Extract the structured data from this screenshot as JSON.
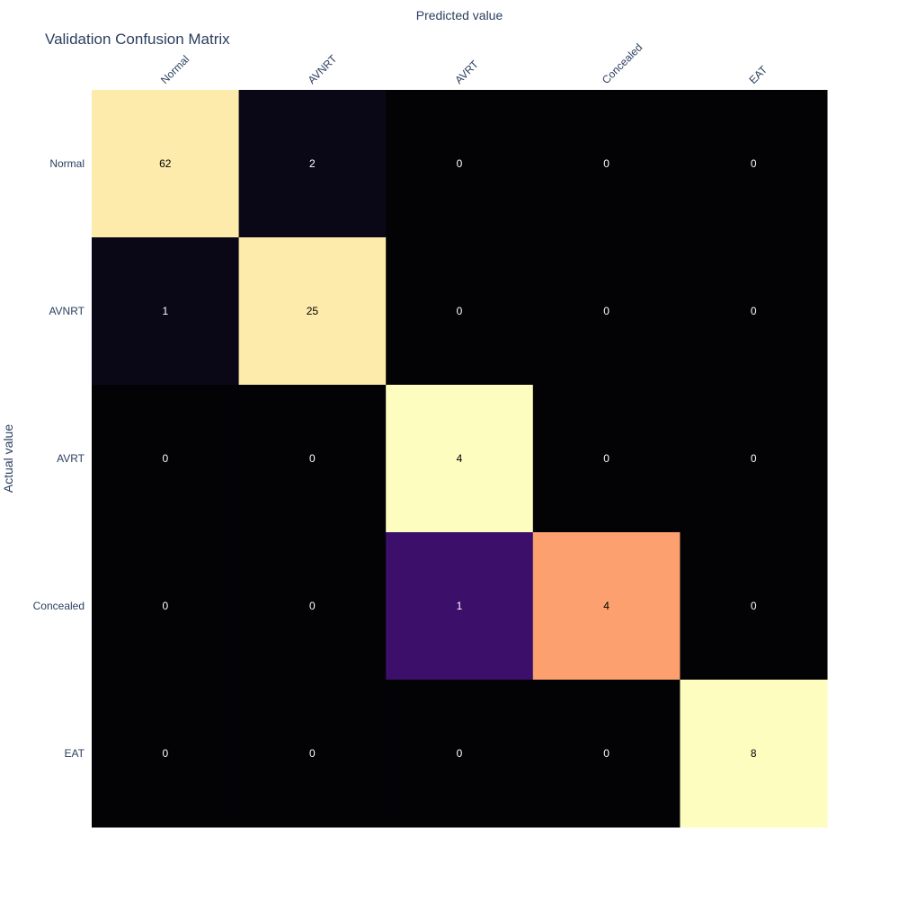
{
  "chart_data": {
    "type": "heatmap",
    "title": "Validation Confusion Matrix",
    "xlabel": "Predicted value",
    "ylabel": "Actual value",
    "x_categories": [
      "Normal",
      "AVNRT",
      "AVRT",
      "Concealed",
      "EAT"
    ],
    "y_categories": [
      "Normal",
      "AVNRT",
      "AVRT",
      "Concealed",
      "EAT"
    ],
    "x_axis_position": "top",
    "colorscale": "magma",
    "values": [
      [
        62,
        2,
        0,
        0,
        0
      ],
      [
        1,
        25,
        0,
        0,
        0
      ],
      [
        0,
        0,
        4,
        0,
        0
      ],
      [
        0,
        0,
        1,
        4,
        0
      ],
      [
        0,
        0,
        0,
        0,
        8
      ]
    ],
    "cell_colors": [
      [
        "#fdebac",
        "#0a0817",
        "#030306",
        "#030306",
        "#030306"
      ],
      [
        "#0a0817",
        "#fdebac",
        "#030306",
        "#030306",
        "#030306"
      ],
      [
        "#030306",
        "#030306",
        "#fcfdbf",
        "#030306",
        "#030306"
      ],
      [
        "#030306",
        "#030306",
        "#3c0f6b",
        "#fba06e",
        "#030306"
      ],
      [
        "#030306",
        "#030306",
        "#030306",
        "#030306",
        "#fcfdbf"
      ]
    ],
    "text_colors": [
      [
        "#000000",
        "#ffffff",
        "#ffffff",
        "#ffffff",
        "#ffffff"
      ],
      [
        "#ffffff",
        "#000000",
        "#ffffff",
        "#ffffff",
        "#ffffff"
      ],
      [
        "#ffffff",
        "#ffffff",
        "#000000",
        "#ffffff",
        "#ffffff"
      ],
      [
        "#ffffff",
        "#ffffff",
        "#ffffff",
        "#000000",
        "#ffffff"
      ],
      [
        "#ffffff",
        "#ffffff",
        "#ffffff",
        "#ffffff",
        "#000000"
      ]
    ],
    "grid": false,
    "legend": "none"
  }
}
